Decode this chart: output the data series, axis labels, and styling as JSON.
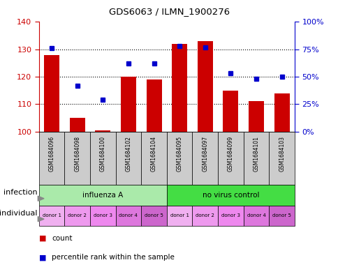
{
  "title": "GDS6063 / ILMN_1900276",
  "samples": [
    "GSM1684096",
    "GSM1684098",
    "GSM1684100",
    "GSM1684102",
    "GSM1684104",
    "GSM1684095",
    "GSM1684097",
    "GSM1684099",
    "GSM1684101",
    "GSM1684103"
  ],
  "count_values": [
    128,
    105,
    100.5,
    120,
    119,
    132,
    133,
    115,
    111,
    114
  ],
  "percentile_values": [
    76,
    42,
    29,
    62,
    62,
    78,
    77,
    53,
    48,
    50
  ],
  "ylim_left": [
    100,
    140
  ],
  "ylim_right": [
    0,
    100
  ],
  "yticks_left": [
    100,
    110,
    120,
    130,
    140
  ],
  "yticks_right": [
    0,
    25,
    50,
    75,
    100
  ],
  "ytick_labels_right": [
    "0%",
    "25%",
    "50%",
    "75%",
    "100%"
  ],
  "bar_color": "#cc0000",
  "dot_color": "#0000cc",
  "bar_bottom": 100,
  "infection_groups": [
    {
      "label": "influenza A",
      "start": 0,
      "end": 5,
      "color": "#aaeaaa"
    },
    {
      "label": "no virus control",
      "start": 5,
      "end": 10,
      "color": "#44dd44"
    }
  ],
  "individual_labels": [
    "donor 1",
    "donor 2",
    "donor 3",
    "donor 4",
    "donor 5",
    "donor 1",
    "donor 2",
    "donor 3",
    "donor 4",
    "donor 5"
  ],
  "individual_colors": [
    "#f0b0f0",
    "#ee99ee",
    "#ee88ee",
    "#dd77dd",
    "#cc66cc",
    "#f0b0f0",
    "#ee99ee",
    "#ee88ee",
    "#dd77dd",
    "#cc66cc"
  ],
  "xlabel_infection": "infection",
  "xlabel_individual": "individual",
  "legend_count": "count",
  "legend_percentile": "percentile rank within the sample",
  "sample_bg": "#cccccc",
  "tick_label_color_left": "#cc0000",
  "tick_label_color_right": "#0000cc",
  "grid_yticks": [
    110,
    120,
    130
  ]
}
